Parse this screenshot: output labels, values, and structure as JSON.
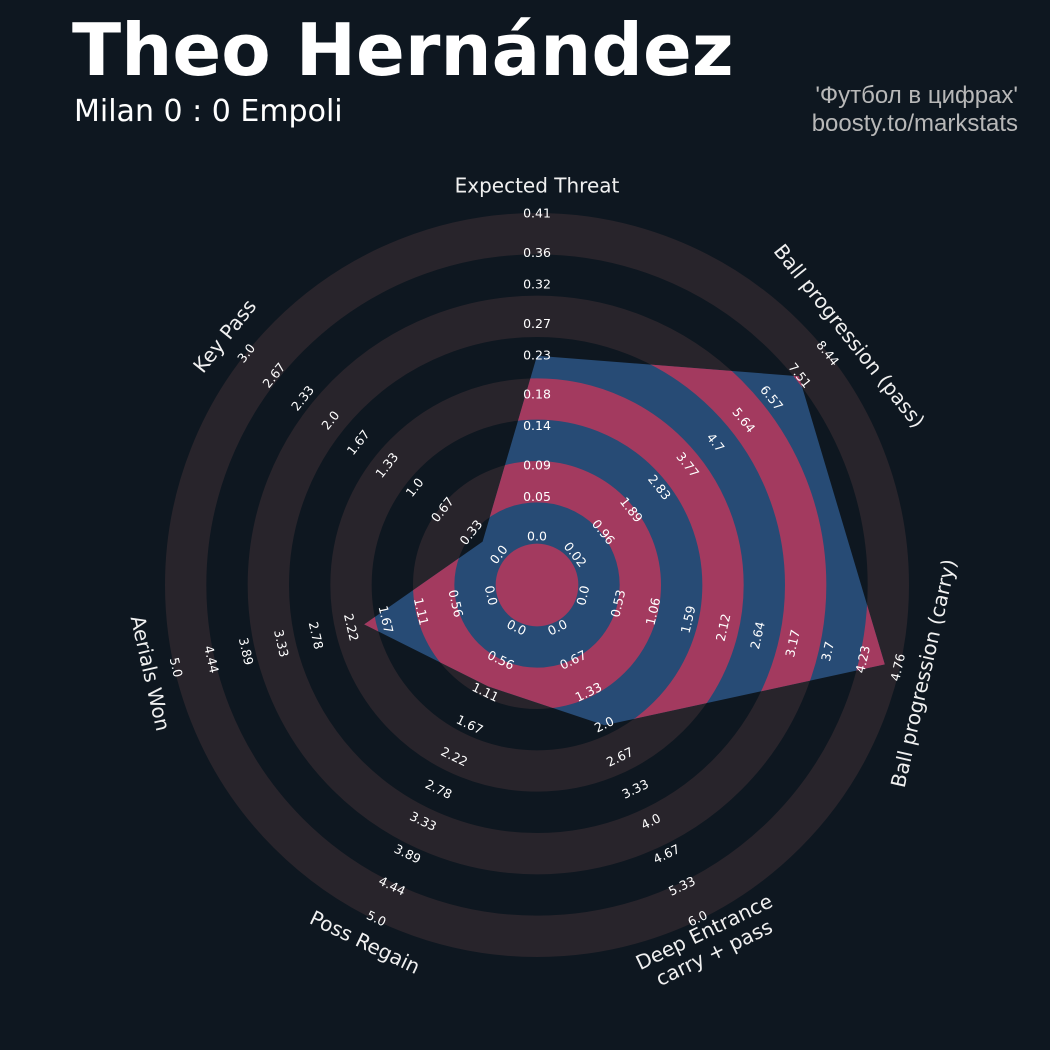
{
  "chart_data": {
    "type": "radar",
    "title": "Theo Hernández",
    "subtitle": "Milan 0 : 0 Empoli",
    "credits": [
      "'Футбол в цифрах'",
      "boosty.to/markstats"
    ],
    "categories": [
      "Expected Threat",
      "Ball progression (pass)",
      "Ball progression (carry)",
      [
        "Deep Entrance",
        "carry + pass"
      ],
      "Poss Regain",
      "Aerials Won",
      "Key Pass"
    ],
    "values": [
      0.23,
      7.5,
      4.55,
      2.0,
      1.0,
      2.0,
      0.2
    ],
    "color": "#274b75",
    "ring_color": "#a33a5f",
    "axes": [
      {
        "lim": [
          0,
          0.41
        ],
        "ticks": [
          {
            "value": 0,
            "label": "0.0"
          },
          0.05,
          0.09,
          0.14,
          0.18,
          0.23,
          0.27,
          0.32,
          0.36,
          0.41
        ]
      },
      {
        "lim": [
          0.02,
          8.44
        ],
        "ticks": [
          0.02,
          0.96,
          1.89,
          2.83,
          3.77,
          4.7,
          5.64,
          6.57,
          7.51,
          8.44
        ]
      },
      {
        "lim": [
          0,
          4.76
        ],
        "ticks": [
          {
            "value": 0,
            "label": "0.0"
          },
          0.53,
          1.06,
          1.59,
          2.12,
          2.64,
          3.17,
          3.7,
          4.23,
          4.76
        ]
      },
      {
        "lim": [
          0,
          6
        ],
        "ticks": [
          {
            "value": 0,
            "label": "0.0"
          },
          0.67,
          1.33,
          {
            "value": 2,
            "label": "2.0"
          },
          2.67,
          3.33,
          {
            "value": 4,
            "label": "4.0"
          },
          4.67,
          5.33,
          {
            "value": 6,
            "label": "6.0"
          }
        ]
      },
      {
        "lim": [
          0,
          5
        ],
        "ticks": [
          {
            "value": 0,
            "label": "0.0"
          },
          0.56,
          1.11,
          1.67,
          2.22,
          2.78,
          3.33,
          3.89,
          4.44,
          {
            "value": 5,
            "label": "5.0"
          }
        ]
      },
      {
        "lim": [
          0,
          5
        ],
        "ticks": [
          {
            "value": 0,
            "label": "0.0"
          },
          0.56,
          1.11,
          1.67,
          2.22,
          2.78,
          3.33,
          3.89,
          4.44,
          {
            "value": 5,
            "label": "5.0"
          }
        ]
      },
      {
        "lim": [
          0,
          3
        ],
        "ticks": [
          {
            "value": 0,
            "label": "0.0"
          },
          0.33,
          0.67,
          {
            "value": 1,
            "label": "1.0"
          },
          1.33,
          1.67,
          {
            "value": 2,
            "label": "2.0"
          },
          2.33,
          2.67,
          {
            "value": 3,
            "label": "3.0"
          }
        ]
      }
    ]
  }
}
